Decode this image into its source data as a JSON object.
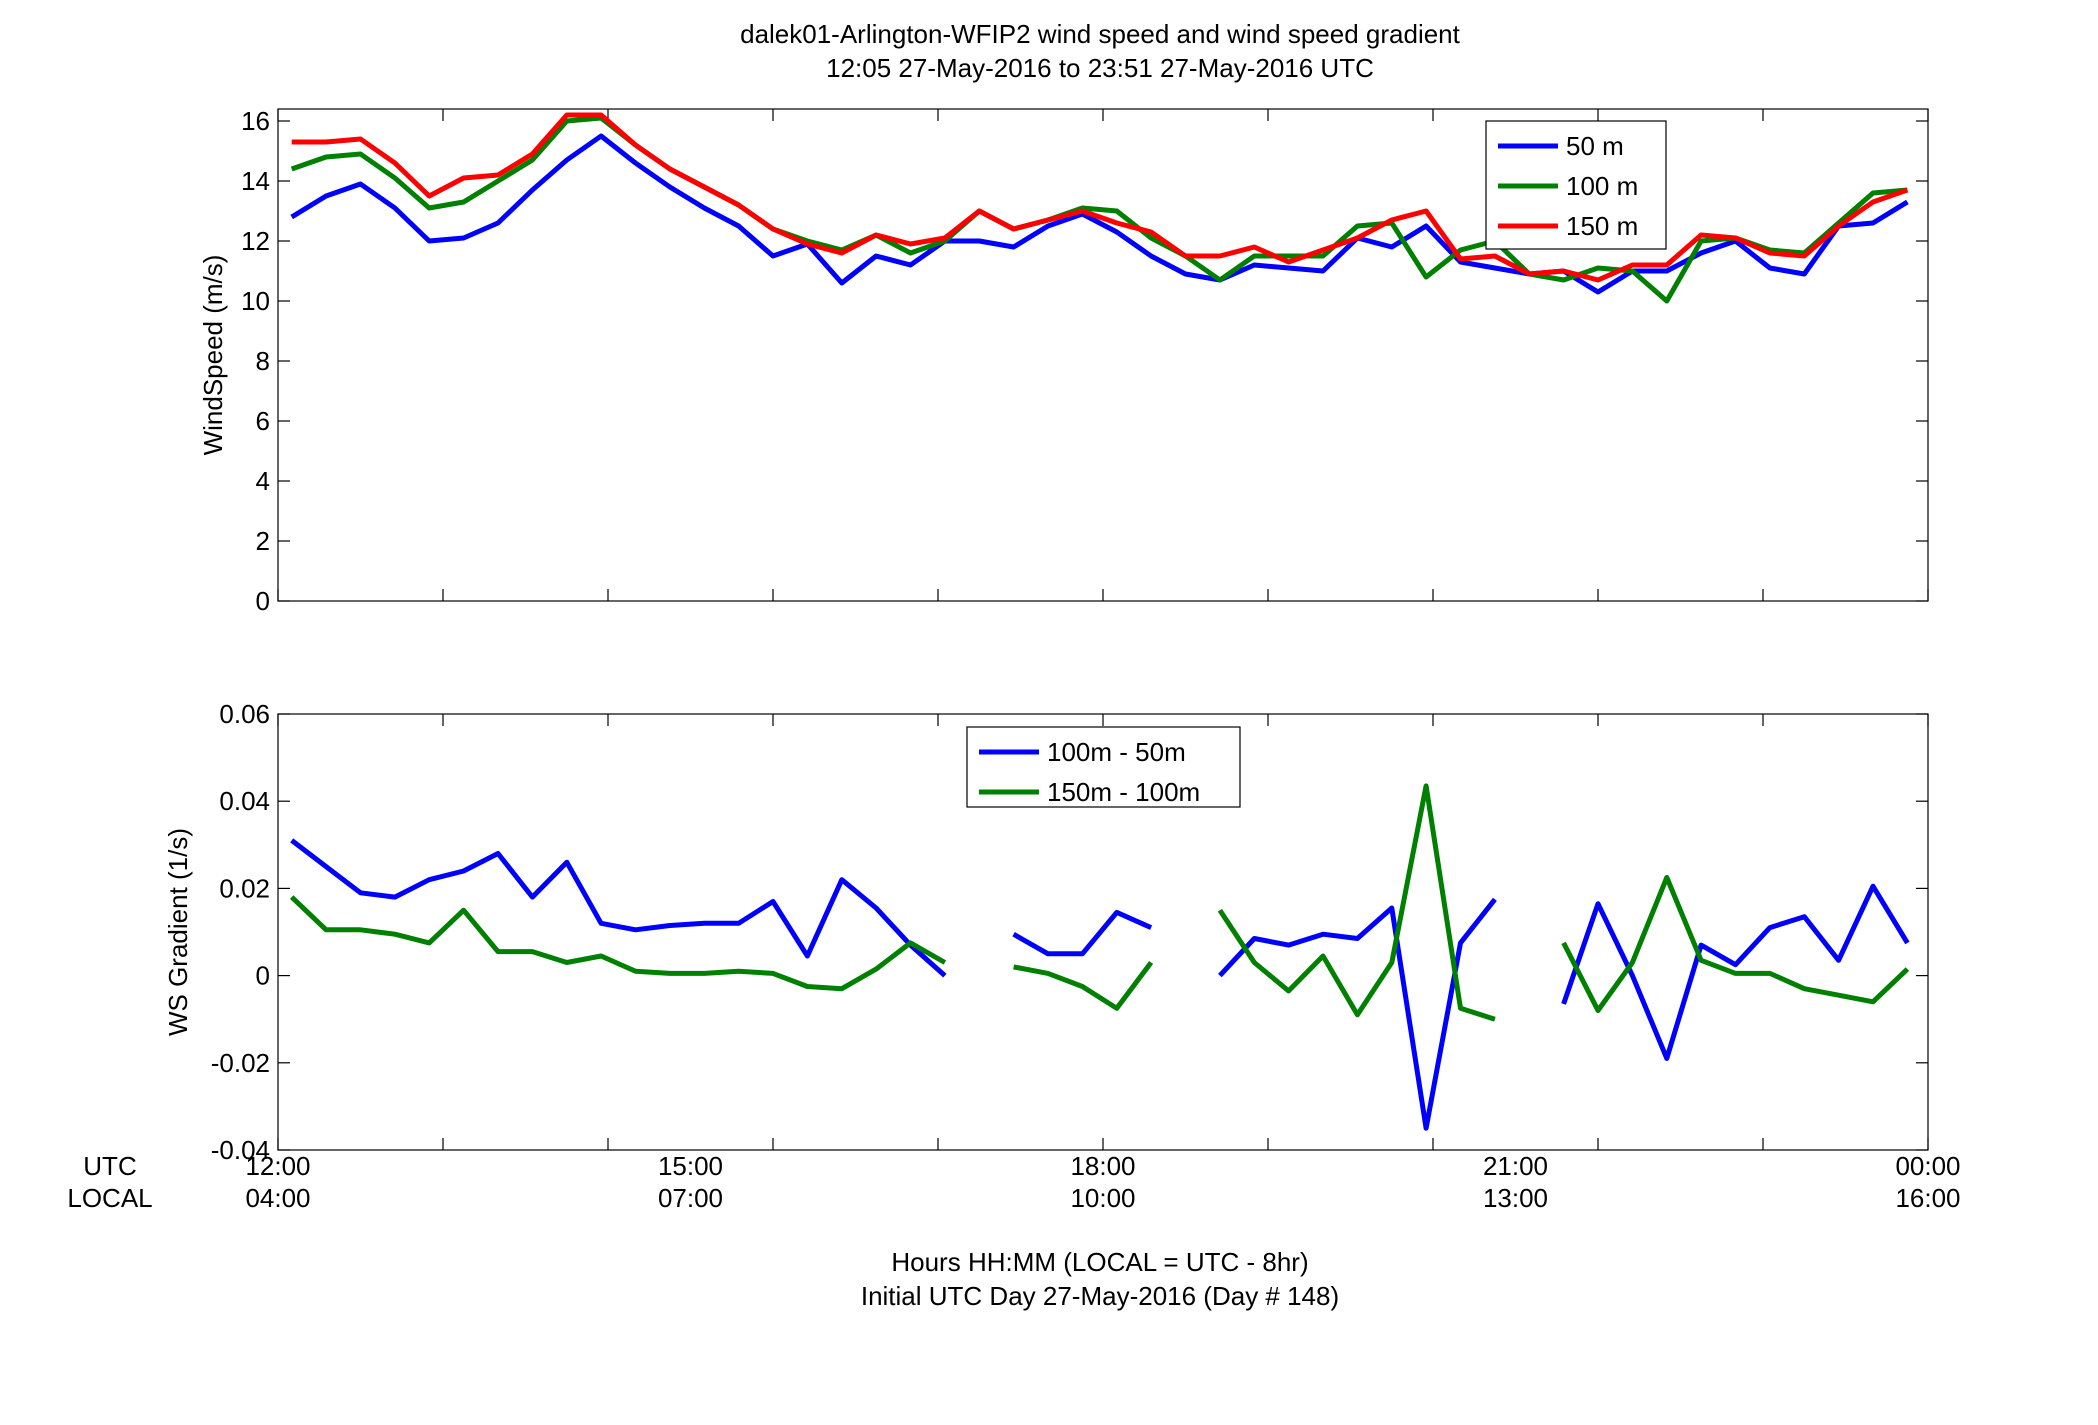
{
  "title_line1": "dalek01-Arlington-WFIP2  wind speed and wind speed gradient",
  "title_line2": "12:05 27-May-2016 to 23:51 27-May-2016  UTC",
  "xlabel_line1": "Hours HH:MM  (LOCAL = UTC - 8hr)",
  "xlabel_line2": "Initial UTC Day 27-May-2016 (Day # 148)",
  "row_labels": {
    "utc": "UTC",
    "local": "LOCAL"
  },
  "x_ticks_utc": [
    "12:00",
    "15:00",
    "18:00",
    "21:00",
    "00:00"
  ],
  "x_ticks_local": [
    "04:00",
    "07:00",
    "10:00",
    "13:00",
    "16:00"
  ],
  "chart_data": [
    {
      "type": "line",
      "ylabel": "WindSpeed (m/s)",
      "xlim": [
        12.0,
        24.0
      ],
      "ylim": [
        0,
        16.4
      ],
      "yticks": [
        0,
        2,
        4,
        6,
        8,
        10,
        12,
        14,
        16
      ],
      "xticks": [
        12,
        13.2,
        14.4,
        15.6,
        16.8,
        18,
        19.2,
        20.4,
        21.6,
        22.8,
        24
      ],
      "grid": false,
      "legend": "top-right",
      "x": [
        12.1,
        12.35,
        12.6,
        12.85,
        13.1,
        13.35,
        13.6,
        13.85,
        14.1,
        14.35,
        14.6,
        14.85,
        15.1,
        15.35,
        15.6,
        15.85,
        16.1,
        16.35,
        16.6,
        16.85,
        17.1,
        17.35,
        17.6,
        17.85,
        18.1,
        18.35,
        18.6,
        18.85,
        19.1,
        19.35,
        19.6,
        19.85,
        20.1,
        20.35,
        20.6,
        20.85,
        21.1,
        21.35,
        21.6,
        21.85,
        22.1,
        22.35,
        22.6,
        22.85,
        23.1,
        23.35,
        23.6,
        23.85
      ],
      "series": [
        {
          "name": "50 m",
          "color": "#0000ff",
          "values": [
            12.8,
            13.5,
            13.9,
            13.1,
            12.0,
            12.1,
            12.6,
            13.7,
            14.7,
            15.5,
            14.6,
            13.8,
            13.1,
            12.5,
            11.5,
            11.9,
            10.6,
            11.5,
            11.2,
            12.0,
            12.0,
            11.8,
            12.5,
            12.9,
            12.3,
            11.5,
            10.9,
            10.7,
            11.2,
            11.1,
            11.0,
            12.1,
            11.8,
            12.5,
            11.3,
            11.1,
            10.9,
            11.0,
            10.3,
            11.0,
            11.0,
            11.6,
            12.0,
            11.1,
            10.9,
            12.5,
            12.6,
            13.3
          ]
        },
        {
          "name": "100 m",
          "color": "#008000",
          "values": [
            14.4,
            14.8,
            14.9,
            14.1,
            13.1,
            13.3,
            14.0,
            14.7,
            16.0,
            16.1,
            15.2,
            14.4,
            13.8,
            13.2,
            12.4,
            12.0,
            11.7,
            12.2,
            11.6,
            12.0,
            13.0,
            12.4,
            12.7,
            13.1,
            13.0,
            12.1,
            11.5,
            10.7,
            11.5,
            11.5,
            11.5,
            12.5,
            12.6,
            10.8,
            11.7,
            12.0,
            10.9,
            10.7,
            11.1,
            11.0,
            10.0,
            12.0,
            12.1,
            11.7,
            11.6,
            12.6,
            13.6,
            13.7
          ]
        },
        {
          "name": "150 m",
          "color": "#ff0000",
          "values": [
            15.3,
            15.3,
            15.4,
            14.6,
            13.5,
            14.1,
            14.2,
            14.9,
            16.2,
            16.2,
            15.2,
            14.4,
            13.8,
            13.2,
            12.4,
            11.9,
            11.6,
            12.2,
            11.9,
            12.1,
            13.0,
            12.4,
            12.7,
            13.0,
            12.6,
            12.3,
            11.5,
            11.5,
            11.8,
            11.3,
            11.7,
            12.1,
            12.7,
            13.0,
            11.4,
            11.5,
            10.9,
            11.0,
            10.7,
            11.2,
            11.2,
            12.2,
            12.1,
            11.6,
            11.5,
            12.5,
            13.3,
            13.7
          ]
        }
      ]
    },
    {
      "type": "line",
      "ylabel": "WS Gradient (1/s)",
      "xlim": [
        12.0,
        24.0
      ],
      "ylim": [
        -0.04,
        0.06
      ],
      "yticks": [
        -0.04,
        -0.02,
        0,
        0.02,
        0.04,
        0.06
      ],
      "ytick_labels": [
        "-0.04",
        "-0.02",
        "0",
        "0.02",
        "0.04",
        "0.06"
      ],
      "xticks": [
        12,
        13.2,
        14.4,
        15.6,
        16.8,
        18,
        19.2,
        20.4,
        21.6,
        22.8,
        24
      ],
      "grid": false,
      "legend": "top-center",
      "x": [
        12.1,
        12.35,
        12.6,
        12.85,
        13.1,
        13.35,
        13.6,
        13.85,
        14.1,
        14.35,
        14.6,
        14.85,
        15.1,
        15.35,
        15.6,
        15.85,
        16.1,
        16.35,
        16.6,
        16.85,
        17.1,
        17.35,
        17.6,
        17.85,
        18.1,
        18.35,
        18.6,
        18.85,
        19.1,
        19.35,
        19.6,
        19.85,
        20.1,
        20.35,
        20.6,
        20.85,
        21.1,
        21.35,
        21.6,
        21.85,
        22.1,
        22.35,
        22.6,
        22.85,
        23.1,
        23.35,
        23.6,
        23.85
      ],
      "series": [
        {
          "name": "100m - 50m",
          "color": "#0000ff",
          "values": [
            0.031,
            0.025,
            0.019,
            0.018,
            0.022,
            0.024,
            0.028,
            0.018,
            0.026,
            0.012,
            0.0105,
            0.0115,
            0.012,
            0.012,
            0.017,
            0.0045,
            0.022,
            0.0155,
            0.007,
            0.0,
            null,
            0.0095,
            0.005,
            0.005,
            0.0145,
            0.011,
            null,
            0.0,
            0.0085,
            0.007,
            0.0095,
            0.0085,
            0.0155,
            -0.035,
            0.0075,
            0.0175,
            null,
            -0.0065,
            0.0165,
            0.0,
            -0.019,
            0.007,
            0.0025,
            0.011,
            0.0135,
            0.0035,
            0.0205,
            0.0075
          ]
        },
        {
          "name": "150m - 100m",
          "color": "#008000",
          "values": [
            0.018,
            0.0105,
            0.0105,
            0.0095,
            0.0075,
            0.015,
            0.0055,
            0.0055,
            0.003,
            0.0045,
            0.001,
            0.0005,
            0.0005,
            0.001,
            0.0005,
            -0.0025,
            -0.003,
            0.0015,
            0.0075,
            0.003,
            null,
            0.002,
            0.0005,
            -0.0025,
            -0.0075,
            0.003,
            null,
            0.015,
            0.003,
            -0.0035,
            0.0045,
            -0.009,
            0.003,
            0.0435,
            -0.0075,
            -0.01,
            null,
            0.0075,
            -0.008,
            0.003,
            0.0225,
            0.0035,
            0.0005,
            0.0005,
            -0.003,
            -0.0045,
            -0.006,
            0.0015
          ]
        }
      ]
    }
  ]
}
